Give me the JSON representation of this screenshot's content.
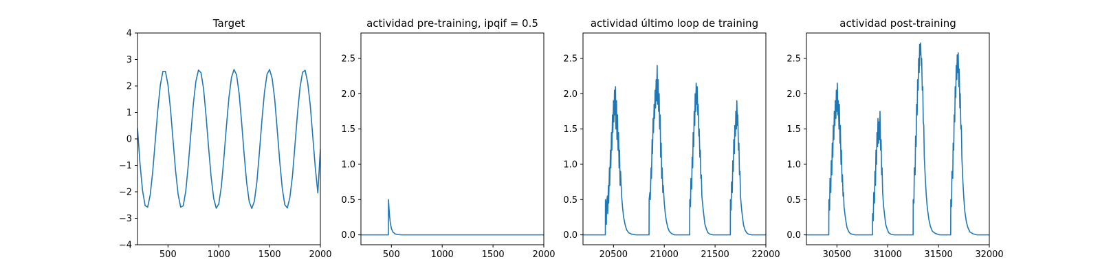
{
  "chart_data": [
    {
      "type": "line",
      "title": "Target",
      "xlabel": "",
      "ylabel": "",
      "xlim": [
        200,
        2000
      ],
      "ylim": [
        -4,
        4
      ],
      "xticks": [
        500,
        1000,
        1500,
        2000
      ],
      "yticks": [
        -4,
        -3,
        -2,
        -1,
        0,
        1,
        2,
        3,
        4
      ],
      "color": "#1f77b4",
      "series": [
        {
          "x": [
            200,
            225,
            250,
            275,
            300,
            325,
            350,
            375,
            400,
            425,
            450,
            475,
            500,
            525,
            550,
            575,
            600,
            625,
            650,
            675,
            700,
            725,
            750,
            775,
            800,
            825,
            850,
            875,
            900,
            925,
            950,
            975,
            1000,
            1025,
            1050,
            1075,
            1100,
            1125,
            1150,
            1175,
            1200,
            1225,
            1250,
            1275,
            1300,
            1325,
            1350,
            1375,
            1400,
            1425,
            1450,
            1475,
            1500,
            1525,
            1550,
            1575,
            1600,
            1625,
            1650,
            1675,
            1700,
            1725,
            1750,
            1775,
            1800,
            1825,
            1850,
            1875,
            1900,
            1925,
            1950,
            1975,
            2000
          ],
          "values": [
            0.41,
            -0.95,
            -1.96,
            -2.52,
            -2.58,
            -2.12,
            -1.23,
            -0.07,
            1.1,
            2.04,
            2.55,
            2.55,
            2.04,
            1.11,
            -0.06,
            -1.21,
            -2.1,
            -2.58,
            -2.53,
            -1.98,
            -0.98,
            0.2,
            1.34,
            2.18,
            2.6,
            2.5,
            1.9,
            0.86,
            -0.34,
            -1.45,
            -2.25,
            -2.62,
            -2.46,
            -1.81,
            -0.74,
            0.47,
            1.56,
            2.32,
            2.62,
            2.42,
            1.72,
            0.62,
            -0.6,
            -1.67,
            -2.38,
            -2.63,
            -2.36,
            -1.63,
            -0.5,
            0.72,
            1.77,
            2.44,
            2.62,
            2.29,
            1.52,
            0.36,
            -0.85,
            -1.87,
            -2.49,
            -2.61,
            -2.21,
            -1.41,
            -0.23,
            0.97,
            1.95,
            2.52,
            2.59,
            2.13,
            1.29,
            0.1,
            -1.09,
            -2.04,
            -0.38
          ]
        }
      ]
    },
    {
      "type": "line",
      "title": "actividad pre-training, ipqif = 0.5",
      "xlabel": "",
      "ylabel": "",
      "xlim": [
        200,
        2000
      ],
      "ylim": [
        -0.14,
        2.86
      ],
      "xticks": [
        500,
        1000,
        1500,
        2000
      ],
      "yticks": [
        0.0,
        0.5,
        1.0,
        1.5,
        2.0,
        2.5
      ],
      "color": "#1f77b4",
      "series": [
        {
          "x": [
            200,
            470,
            471,
            474,
            478,
            483,
            490,
            500,
            515,
            535,
            560,
            600,
            2000
          ],
          "values": [
            0.0,
            0.0,
            0.5,
            0.43,
            0.34,
            0.25,
            0.16,
            0.09,
            0.04,
            0.015,
            0.005,
            0.0,
            0.0
          ]
        }
      ]
    },
    {
      "type": "line",
      "title": "actividad último loop de training",
      "xlabel": "",
      "ylabel": "",
      "xlim": [
        20200,
        22000
      ],
      "ylim": [
        -0.14,
        2.86
      ],
      "xticks": [
        20500,
        21000,
        21500,
        22000
      ],
      "yticks": [
        0.0,
        0.5,
        1.0,
        1.5,
        2.0,
        2.5
      ],
      "color": "#1f77b4",
      "series": [
        {
          "x": [
            20200,
            20420,
            20421,
            20430,
            20432,
            20440,
            20443,
            20450,
            20453,
            20460,
            20463,
            20470,
            20474,
            20480,
            20484,
            20490,
            20494,
            20500,
            20504,
            20510,
            20514,
            20520,
            20524,
            20530,
            20534,
            20540,
            20545,
            20550,
            20555,
            20560,
            20565,
            20570,
            20580,
            20590,
            20600,
            20615,
            20630,
            20650,
            20680,
            20720,
            20850,
            20851,
            20858,
            20862,
            20870,
            20874,
            20880,
            20884,
            20890,
            20894,
            20900,
            20904,
            20910,
            20914,
            20920,
            20924,
            20930,
            20934,
            20940,
            20944,
            20950,
            20954,
            20960,
            20964,
            20970,
            20974,
            20980,
            20985,
            20990,
            21000,
            21010,
            21020,
            21035,
            21050,
            21070,
            21100,
            21150,
            21250,
            21251,
            21258,
            21262,
            21270,
            21274,
            21280,
            21284,
            21290,
            21294,
            21300,
            21304,
            21310,
            21314,
            21320,
            21324,
            21330,
            21334,
            21340,
            21344,
            21350,
            21355,
            21360,
            21365,
            21370,
            21380,
            21390,
            21400,
            21415,
            21430,
            21450,
            21480,
            21520,
            21650,
            21651,
            21658,
            21662,
            21670,
            21674,
            21680,
            21684,
            21690,
            21694,
            21700,
            21704,
            21710,
            21714,
            21720,
            21724,
            21730,
            21735,
            21740,
            21745,
            21750,
            21760,
            21770,
            21780,
            21795,
            21810,
            21830,
            21860,
            21900,
            22000
          ],
          "values": [
            0.0,
            0.0,
            0.5,
            0.15,
            0.45,
            0.55,
            0.3,
            0.7,
            0.45,
            0.95,
            0.7,
            1.2,
            0.95,
            1.45,
            1.2,
            1.7,
            1.45,
            1.9,
            1.6,
            2.05,
            1.7,
            2.1,
            1.5,
            1.9,
            1.35,
            1.7,
            1.2,
            1.45,
            0.95,
            1.2,
            0.7,
            0.9,
            0.55,
            0.38,
            0.25,
            0.14,
            0.07,
            0.03,
            0.01,
            0.0,
            0.0,
            0.5,
            0.6,
            0.5,
            0.95,
            0.8,
            1.35,
            1.15,
            1.65,
            1.45,
            1.85,
            1.65,
            2.05,
            1.8,
            2.2,
            1.9,
            2.4,
            1.85,
            2.2,
            1.75,
            2.0,
            1.5,
            1.7,
            1.1,
            1.3,
            0.8,
            0.95,
            0.6,
            0.7,
            0.45,
            0.3,
            0.2,
            0.1,
            0.05,
            0.02,
            0.0,
            0.0,
            0.0,
            0.5,
            0.4,
            0.8,
            0.65,
            1.1,
            0.95,
            1.45,
            1.25,
            1.75,
            1.55,
            2.0,
            1.75,
            2.15,
            1.85,
            2.1,
            1.7,
            1.85,
            1.4,
            1.5,
            1.1,
            1.2,
            0.8,
            0.85,
            0.55,
            0.4,
            0.27,
            0.15,
            0.08,
            0.03,
            0.01,
            0.0,
            0.0,
            0.0,
            0.5,
            0.35,
            0.75,
            0.6,
            1.05,
            0.9,
            1.35,
            1.15,
            1.55,
            1.4,
            1.75,
            1.5,
            1.9,
            1.55,
            1.7,
            1.2,
            1.3,
            0.85,
            0.9,
            0.55,
            0.38,
            0.25,
            0.14,
            0.07,
            0.03,
            0.01,
            0.0,
            0.0,
            0.0
          ]
        }
      ]
    },
    {
      "type": "line",
      "title": "actividad post-training",
      "xlabel": "",
      "ylabel": "",
      "xlim": [
        30200,
        32000
      ],
      "ylim": [
        -0.14,
        2.86
      ],
      "xticks": [
        30500,
        31000,
        31500,
        32000
      ],
      "yticks": [
        0.0,
        0.5,
        1.0,
        1.5,
        2.0,
        2.5
      ],
      "color": "#1f77b4",
      "series": [
        {
          "x": [
            30200,
            30420,
            30421,
            30428,
            30432,
            30440,
            30444,
            30450,
            30454,
            30460,
            30464,
            30470,
            30474,
            30480,
            30484,
            30490,
            30494,
            30500,
            30504,
            30510,
            30514,
            30520,
            30524,
            30530,
            30534,
            30540,
            30545,
            30550,
            30555,
            30560,
            30565,
            30570,
            30580,
            30590,
            30600,
            30615,
            30630,
            30650,
            30680,
            30720,
            30850,
            30851,
            30858,
            30862,
            30870,
            30874,
            30880,
            30884,
            30890,
            30894,
            30900,
            30904,
            30910,
            30914,
            30920,
            30924,
            30930,
            30935,
            30940,
            30945,
            30950,
            30960,
            30970,
            30980,
            30995,
            31010,
            31030,
            31060,
            31100,
            31250,
            31251,
            31258,
            31262,
            31270,
            31274,
            31280,
            31284,
            31290,
            31294,
            31300,
            31304,
            31310,
            31314,
            31320,
            31324,
            31330,
            31334,
            31340,
            31345,
            31350,
            31355,
            31360,
            31370,
            31380,
            31390,
            31405,
            31420,
            31440,
            31470,
            31510,
            31620,
            31621,
            31628,
            31632,
            31640,
            31644,
            31650,
            31654,
            31660,
            31664,
            31670,
            31674,
            31680,
            31684,
            31690,
            31694,
            31700,
            31704,
            31710,
            31714,
            31720,
            31725,
            31730,
            31740,
            31750,
            31760,
            31775,
            31790,
            31810,
            31840,
            31880,
            32000
          ],
          "values": [
            0.0,
            0.0,
            0.5,
            0.35,
            0.8,
            0.6,
            1.05,
            0.85,
            1.3,
            1.1,
            1.55,
            1.35,
            1.75,
            1.55,
            1.9,
            1.65,
            2.05,
            1.75,
            2.15,
            1.7,
            1.9,
            1.5,
            1.85,
            1.3,
            1.55,
            1.0,
            1.2,
            0.75,
            0.85,
            0.55,
            0.6,
            0.4,
            0.28,
            0.18,
            0.1,
            0.05,
            0.02,
            0.01,
            0.0,
            0.0,
            0.0,
            0.3,
            0.2,
            0.6,
            0.45,
            0.9,
            0.7,
            1.2,
            1.0,
            1.45,
            1.25,
            1.65,
            1.3,
            1.6,
            1.35,
            1.75,
            1.2,
            1.35,
            0.85,
            0.95,
            0.6,
            0.4,
            0.27,
            0.15,
            0.08,
            0.03,
            0.01,
            0.0,
            0.0,
            0.0,
            0.5,
            0.45,
            0.95,
            0.85,
            1.4,
            1.25,
            1.85,
            1.7,
            2.2,
            2.05,
            2.5,
            2.3,
            2.7,
            2.55,
            2.72,
            2.4,
            2.5,
            2.05,
            2.1,
            1.6,
            1.55,
            1.1,
            0.8,
            0.55,
            0.38,
            0.22,
            0.12,
            0.05,
            0.02,
            0.0,
            0.0,
            0.5,
            0.4,
            0.9,
            0.8,
            1.3,
            1.2,
            1.7,
            1.6,
            2.1,
            1.95,
            2.4,
            2.2,
            2.55,
            2.3,
            2.58,
            2.1,
            2.35,
            1.8,
            2.0,
            1.5,
            1.55,
            1.1,
            0.75,
            0.5,
            0.32,
            0.18,
            0.1,
            0.04,
            0.015,
            0.0,
            0.0
          ]
        }
      ]
    }
  ]
}
